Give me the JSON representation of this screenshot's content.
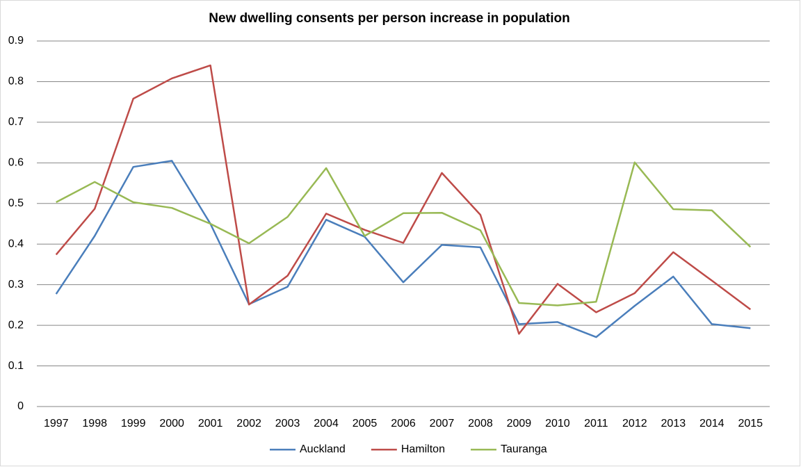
{
  "chart_data": {
    "type": "line",
    "title": "New dwelling consents per person increase in population",
    "categories": [
      "1997",
      "1998",
      "1999",
      "2000",
      "2001",
      "2002",
      "2003",
      "2004",
      "2005",
      "2006",
      "2007",
      "2008",
      "2009",
      "2010",
      "2011",
      "2012",
      "2013",
      "2014",
      "2015"
    ],
    "series": [
      {
        "name": "Auckland",
        "color": "#4a7ebb",
        "values": [
          0.277,
          0.42,
          0.59,
          0.605,
          0.45,
          0.252,
          0.295,
          0.46,
          0.418,
          0.306,
          0.398,
          0.392,
          0.203,
          0.208,
          0.171,
          0.248,
          0.32,
          0.203,
          0.193
        ]
      },
      {
        "name": "Hamilton",
        "color": "#be4b48",
        "values": [
          0.374,
          0.487,
          0.758,
          0.808,
          0.84,
          0.251,
          0.322,
          0.475,
          0.435,
          0.403,
          0.575,
          0.472,
          0.179,
          0.302,
          0.232,
          0.279,
          0.38,
          0.31,
          0.239
        ]
      },
      {
        "name": "Tauranga",
        "color": "#98b954",
        "values": [
          0.503,
          0.553,
          0.503,
          0.489,
          0.45,
          0.402,
          0.467,
          0.587,
          0.42,
          0.476,
          0.477,
          0.434,
          0.255,
          0.249,
          0.258,
          0.601,
          0.486,
          0.483,
          0.393
        ]
      }
    ],
    "ylim": [
      0,
      0.9
    ],
    "yticks": [
      0,
      0.1,
      0.2,
      0.3,
      0.4,
      0.5,
      0.6,
      0.7,
      0.8,
      0.9
    ],
    "grid": true,
    "legend": "bottom"
  }
}
